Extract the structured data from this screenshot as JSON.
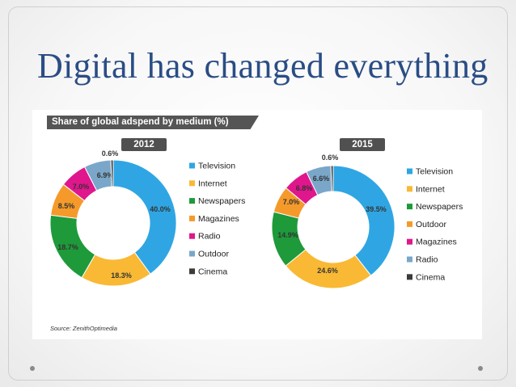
{
  "slide": {
    "title": "Digital has changed everything",
    "panel_title": "Share of global adspend by medium (%)",
    "source": "Source: ZenithOptimedia"
  },
  "chart_data": [
    {
      "type": "pie",
      "title": "2012",
      "colors": [
        "#2fa6e3",
        "#f9b934",
        "#1e9a3a",
        "#f59a2a",
        "#e0168d",
        "#7aa7c9",
        "#3b3b3b"
      ],
      "slices": [
        {
          "name": "Television",
          "value": 40.0,
          "label": "40.0%",
          "color": "#2fa6e3"
        },
        {
          "name": "Internet",
          "value": 18.3,
          "label": "18.3%",
          "color": "#f9b934"
        },
        {
          "name": "Newspapers",
          "value": 18.7,
          "label": "18.7%",
          "color": "#1e9a3a"
        },
        {
          "name": "Magazines",
          "value": 8.5,
          "label": "8.5%",
          "color": "#f59a2a"
        },
        {
          "name": "Radio",
          "value": 7.0,
          "label": "7.0%",
          "color": "#e0168d"
        },
        {
          "name": "Outdoor",
          "value": 6.9,
          "label": "6.9%",
          "color": "#7aa7c9"
        },
        {
          "name": "Cinema",
          "value": 0.6,
          "label": "0.6%",
          "color": "#3b3b3b"
        }
      ],
      "legend": [
        "Television",
        "Internet",
        "Newspapers",
        "Magazines",
        "Radio",
        "Outdoor",
        "Cinema"
      ]
    },
    {
      "type": "pie",
      "title": "2015",
      "colors": [
        "#2fa6e3",
        "#f9b934",
        "#1e9a3a",
        "#f59a2a",
        "#e0168d",
        "#7aa7c9",
        "#3b3b3b"
      ],
      "slices": [
        {
          "name": "Television",
          "value": 39.5,
          "label": "39.5%",
          "color": "#2fa6e3"
        },
        {
          "name": "Internet",
          "value": 24.6,
          "label": "24.6%",
          "color": "#f9b934"
        },
        {
          "name": "Newspapers",
          "value": 14.9,
          "label": "14.9%",
          "color": "#1e9a3a"
        },
        {
          "name": "Outdoor",
          "value": 7.0,
          "label": "7.0%",
          "color": "#f59a2a"
        },
        {
          "name": "Magazines",
          "value": 6.8,
          "label": "6.8%",
          "color": "#e0168d"
        },
        {
          "name": "Radio",
          "value": 6.6,
          "label": "6.6%",
          "color": "#7aa7c9"
        },
        {
          "name": "Cinema",
          "value": 0.6,
          "label": "0.6%",
          "color": "#3b3b3b"
        }
      ],
      "legend": [
        "Television",
        "Internet",
        "Newspapers",
        "Outdoor",
        "Magazines",
        "Radio",
        "Cinema"
      ]
    }
  ]
}
